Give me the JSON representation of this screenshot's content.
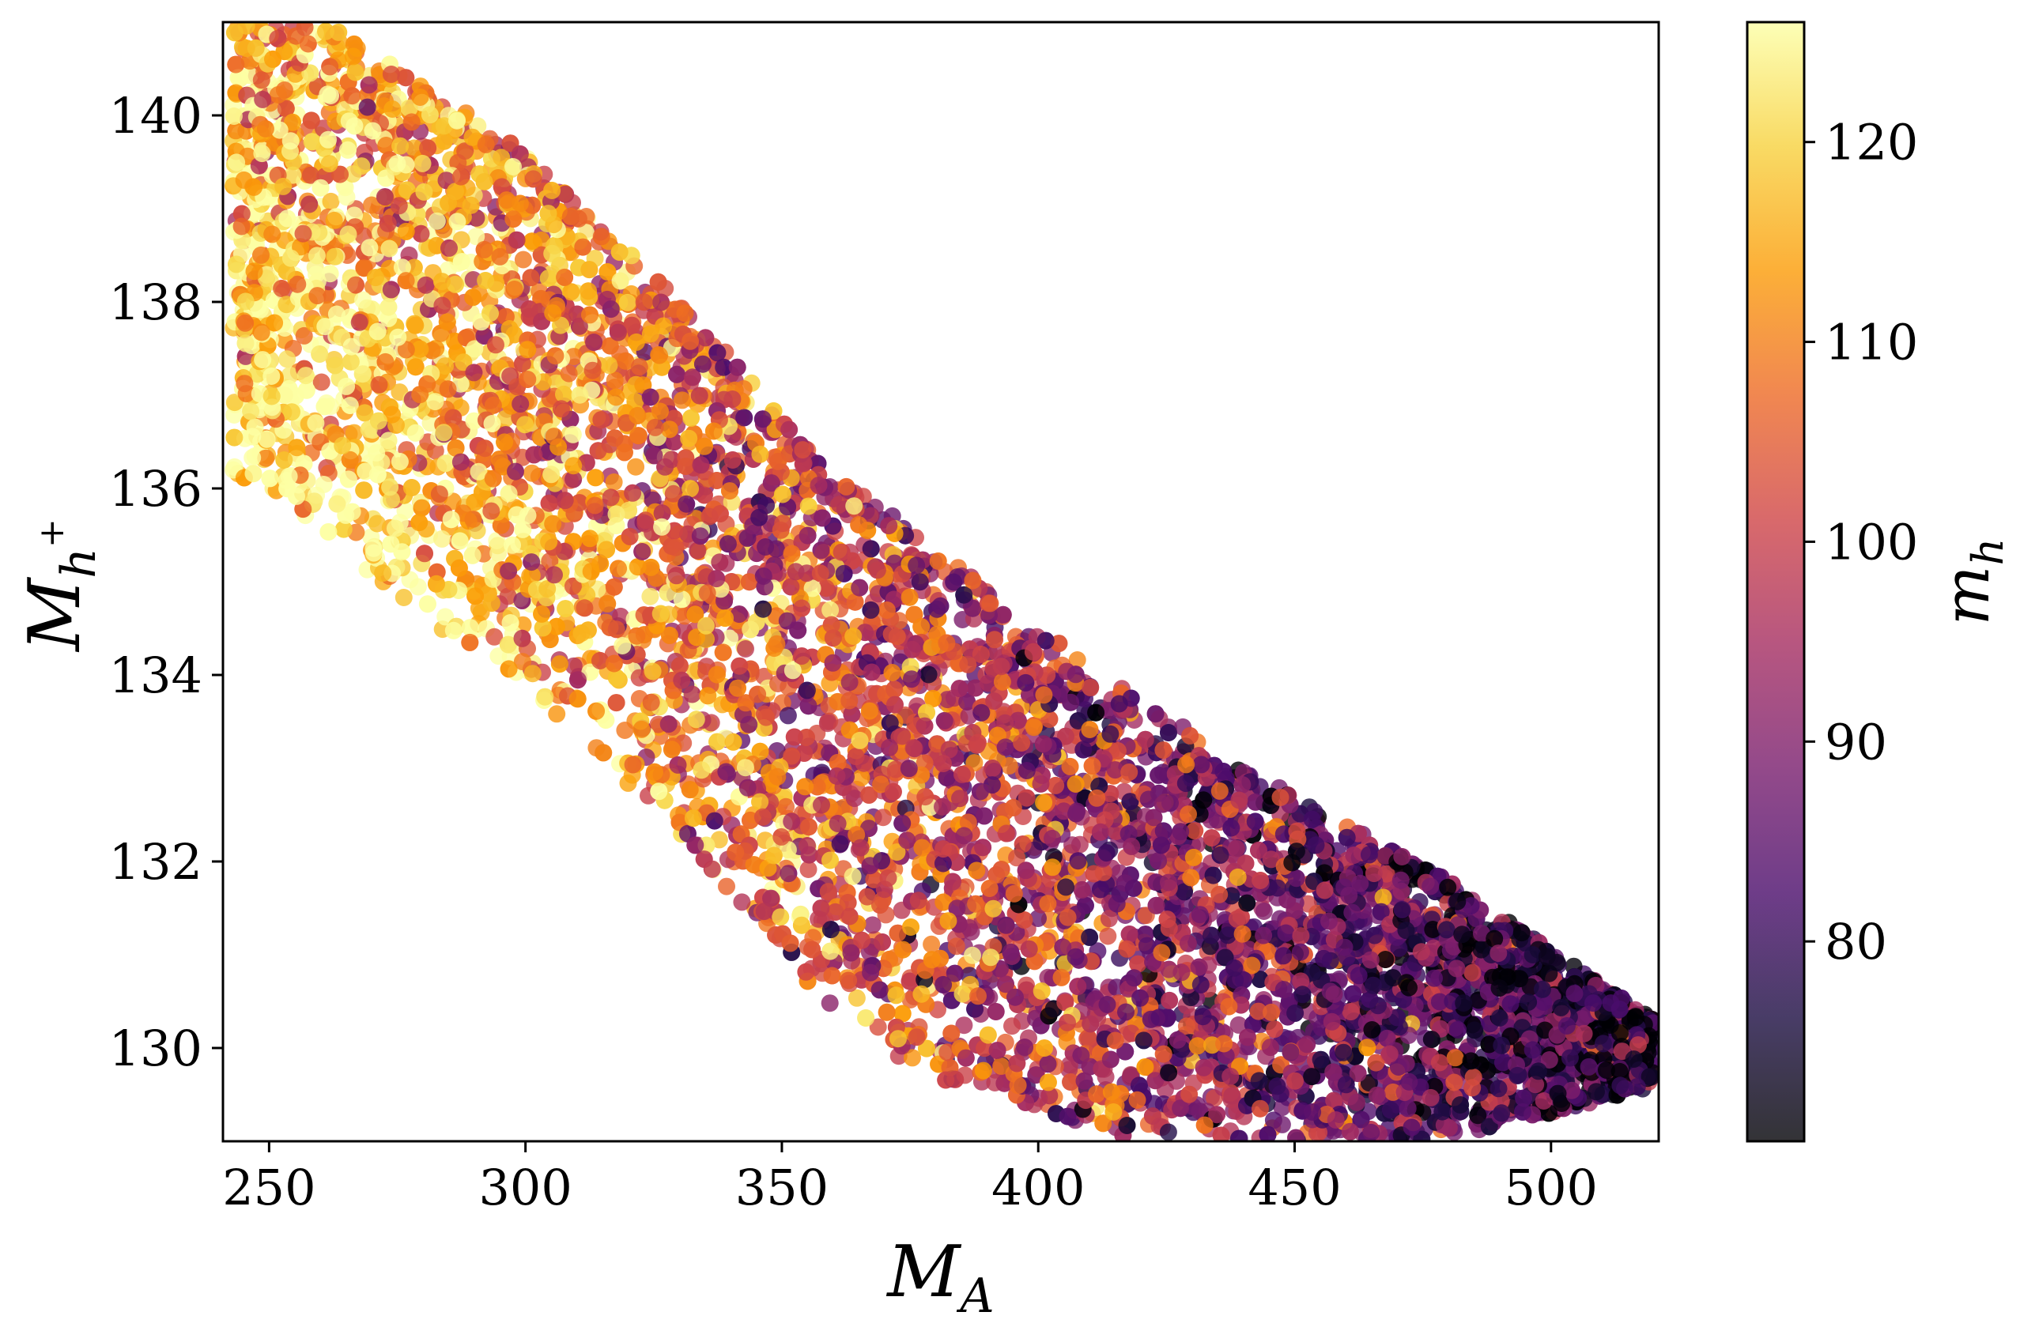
{
  "chart_data": {
    "type": "scatter",
    "xlabel": "M_A",
    "ylabel": "M_{h^+}",
    "colorbar_label": "m_h",
    "xlim": [
      241,
      521
    ],
    "ylim": [
      129.0,
      141.0
    ],
    "x_ticks": [
      250,
      300,
      350,
      400,
      450,
      500
    ],
    "y_ticks": [
      130,
      132,
      134,
      136,
      138,
      140
    ],
    "colorbar": {
      "colormap": "inferno",
      "range": [
        70,
        126
      ],
      "ticks": [
        80,
        90,
        100,
        110,
        120
      ]
    },
    "grid": false,
    "legend": "none",
    "point_count_approx": 9000,
    "band": {
      "description_of_distribution": "points form a diagonal band from upper-left to lower-right; low-M_A region is dominated by m_h 110-125 (yellow/orange), high-M_A region by m_h 70-95 (dark purple/black)",
      "upper_edge": [
        [
          262,
          141.0
        ],
        [
          300,
          139.6
        ],
        [
          330,
          138.0
        ],
        [
          360,
          136.2
        ],
        [
          400,
          134.5
        ],
        [
          440,
          133.0
        ],
        [
          480,
          131.8
        ],
        [
          520,
          130.3
        ]
      ],
      "lower_edge": [
        [
          250,
          136.0
        ],
        [
          280,
          134.6
        ],
        [
          310,
          133.4
        ],
        [
          335,
          132.0
        ],
        [
          355,
          130.6
        ],
        [
          380,
          129.6
        ],
        [
          420,
          129.0
        ],
        [
          480,
          129.0
        ],
        [
          521,
          129.6
        ]
      ]
    },
    "colors": {
      "axis": "#000000",
      "background": "#ffffff",
      "colormap_stops": [
        "#000004",
        "#1b0c41",
        "#4a0c6b",
        "#781c6d",
        "#a52c60",
        "#cf4446",
        "#ed6925",
        "#fb9b06",
        "#f7d13d",
        "#fcffa4"
      ]
    }
  },
  "axes": {
    "x_ticks_text": [
      "250",
      "300",
      "350",
      "400",
      "450",
      "500"
    ],
    "y_ticks_text": [
      "130",
      "132",
      "134",
      "136",
      "138",
      "140"
    ],
    "cbar_ticks_text": [
      "80",
      "90",
      "100",
      "110",
      "120"
    ]
  }
}
